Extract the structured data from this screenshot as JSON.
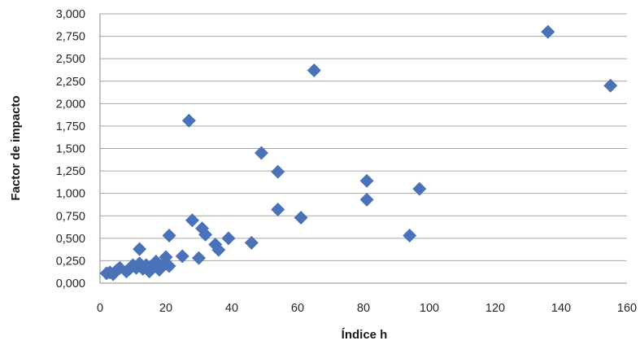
{
  "chart_data": {
    "type": "scatter",
    "title": "",
    "xlabel": "Índice h",
    "ylabel": "Factor de impacto",
    "xlim": [
      0,
      160
    ],
    "ylim": [
      0,
      3
    ],
    "x_ticks": [
      0,
      20,
      40,
      60,
      80,
      100,
      120,
      140,
      160
    ],
    "y_ticks": [
      0,
      0.25,
      0.5,
      0.75,
      1.0,
      1.25,
      1.5,
      1.75,
      2.0,
      2.25,
      2.5,
      2.75,
      3.0
    ],
    "x_tick_labels": [
      "0",
      "20",
      "40",
      "60",
      "80",
      "100",
      "120",
      "140",
      "160"
    ],
    "y_tick_labels": [
      "0,000",
      "0,250",
      "0,500",
      "0,750",
      "1,000",
      "1,250",
      "1,500",
      "1,750",
      "2,000",
      "2,250",
      "2,500",
      "2,750",
      "3,000"
    ],
    "grid": "horizontal",
    "marker": "diamond",
    "marker_color": "#4a72b8",
    "points": [
      [
        2,
        0.11
      ],
      [
        3,
        0.12
      ],
      [
        4,
        0.1
      ],
      [
        5,
        0.14
      ],
      [
        6,
        0.17
      ],
      [
        8,
        0.13
      ],
      [
        9,
        0.16
      ],
      [
        10,
        0.2
      ],
      [
        11,
        0.17
      ],
      [
        12,
        0.38
      ],
      [
        12,
        0.22
      ],
      [
        13,
        0.16
      ],
      [
        14,
        0.2
      ],
      [
        15,
        0.13
      ],
      [
        16,
        0.17
      ],
      [
        17,
        0.24
      ],
      [
        18,
        0.15
      ],
      [
        19,
        0.2
      ],
      [
        20,
        0.29
      ],
      [
        20,
        0.22
      ],
      [
        21,
        0.19
      ],
      [
        21,
        0.53
      ],
      [
        25,
        0.3
      ],
      [
        27,
        1.81
      ],
      [
        28,
        0.7
      ],
      [
        30,
        0.28
      ],
      [
        31,
        0.61
      ],
      [
        32,
        0.54
      ],
      [
        35,
        0.43
      ],
      [
        36,
        0.37
      ],
      [
        39,
        0.5
      ],
      [
        46,
        0.45
      ],
      [
        49,
        1.45
      ],
      [
        54,
        1.24
      ],
      [
        54,
        0.82
      ],
      [
        61,
        0.73
      ],
      [
        65,
        2.37
      ],
      [
        81,
        1.14
      ],
      [
        81,
        0.93
      ],
      [
        94,
        0.53
      ],
      [
        97,
        1.05
      ],
      [
        136,
        2.8
      ],
      [
        155,
        2.2
      ]
    ]
  }
}
